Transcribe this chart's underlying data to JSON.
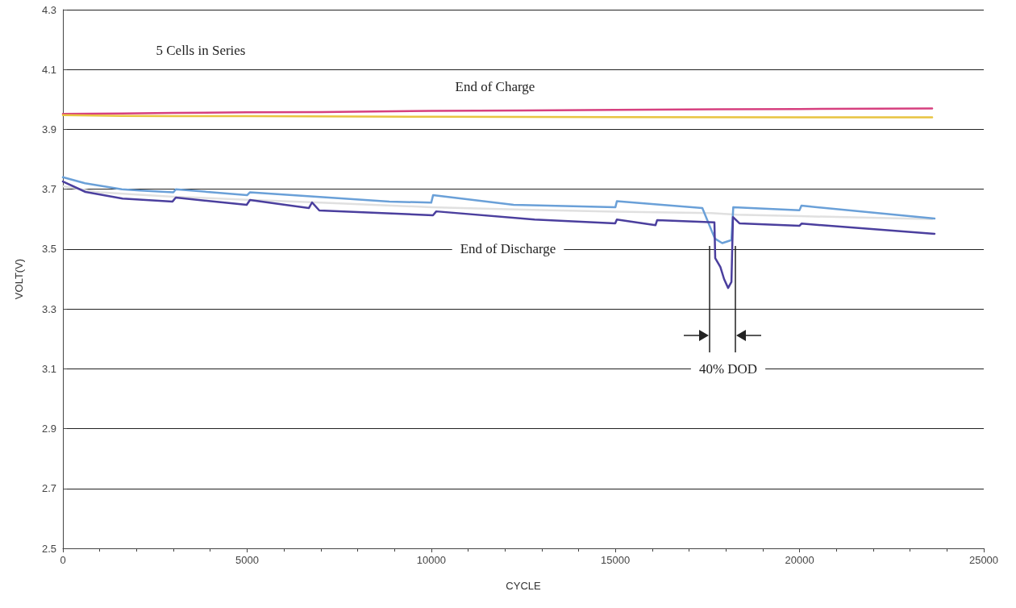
{
  "chart_data": {
    "type": "line",
    "xlabel": "CYCLE",
    "ylabel": "VOLT(V)",
    "xlim": [
      0,
      25000
    ],
    "xticks": [
      0,
      5000,
      10000,
      15000,
      20000,
      25000
    ],
    "ylim": [
      2.5,
      4.3
    ],
    "yticks": [
      2.5,
      2.7,
      2.9,
      3.1,
      3.3,
      3.5,
      3.7,
      3.9,
      4.1,
      4.3
    ],
    "grid": "y",
    "marker": "none",
    "line_style": "solid",
    "annotations": [
      "5 Cells in Series",
      "End of Charge",
      "End of Discharge",
      "40% DOD"
    ],
    "series": [
      {
        "color": "#d6407f",
        "x": [
          0,
          1600,
          3000,
          5000,
          7000,
          10000,
          12500,
          15000,
          17800,
          20000,
          23600
        ],
        "values": [
          3.952,
          3.953,
          3.955,
          3.957,
          3.958,
          3.962,
          3.963,
          3.965,
          3.967,
          3.968,
          3.97
        ]
      },
      {
        "color": "#e8c440",
        "x": [
          0,
          1600,
          3000,
          5000,
          10000,
          15000,
          20000,
          23600
        ],
        "values": [
          3.948,
          3.945,
          3.944,
          3.944,
          3.942,
          3.941,
          3.94,
          3.94
        ]
      },
      {
        "color": "#e0e0e0",
        "x": [
          0,
          1000,
          3000,
          5000,
          7000,
          10000,
          12500,
          15000,
          17600,
          18300,
          20000,
          23600
        ],
        "values": [
          3.71,
          3.69,
          3.675,
          3.665,
          3.655,
          3.64,
          3.632,
          3.625,
          3.62,
          3.615,
          3.61,
          3.6
        ]
      },
      {
        "color": "#6aa0d8",
        "x": [
          0,
          600,
          1600,
          2100,
          3000,
          3065,
          5000,
          5080,
          8866,
          10000,
          10050,
          12237,
          15000,
          15040,
          17360,
          17700,
          17900,
          18150,
          18200,
          20000,
          20050,
          23664
        ],
        "values": [
          3.74,
          3.72,
          3.7,
          3.696,
          3.69,
          3.7,
          3.68,
          3.69,
          3.659,
          3.655,
          3.68,
          3.648,
          3.64,
          3.66,
          3.637,
          3.535,
          3.52,
          3.53,
          3.64,
          3.63,
          3.645,
          3.602
        ]
      },
      {
        "color": "#4b3f9e",
        "x": [
          0,
          613,
          1620,
          2977,
          3065,
          4990,
          5079,
          6677,
          6764,
          6961,
          10048,
          10136,
          12806,
          14995,
          15039,
          16090,
          16134,
          17688,
          17710,
          17850,
          17950,
          18060,
          18150,
          18192,
          18367,
          20000,
          20053,
          23664
        ],
        "values": [
          3.726,
          3.691,
          3.669,
          3.659,
          3.672,
          3.648,
          3.664,
          3.637,
          3.656,
          3.629,
          3.613,
          3.626,
          3.599,
          3.586,
          3.599,
          3.58,
          3.597,
          3.589,
          3.47,
          3.44,
          3.4,
          3.37,
          3.39,
          3.607,
          3.586,
          3.578,
          3.585,
          3.551
        ]
      }
    ]
  }
}
